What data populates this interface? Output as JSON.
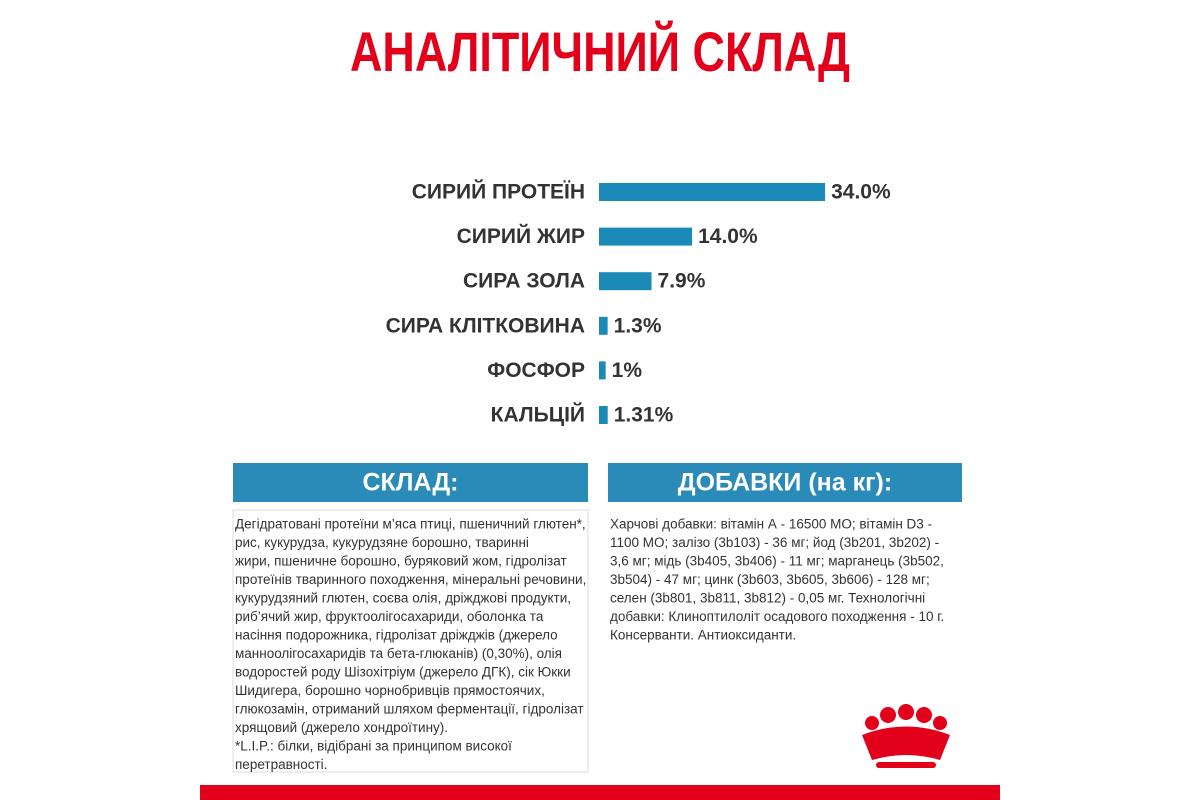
{
  "chart_data": {
    "type": "bar",
    "orientation": "horizontal",
    "title": "АНАЛІТИЧНИЙ СКЛАД",
    "categories": [
      "СИРИЙ ПРОТЕЇН",
      "СИРИЙ ЖИР",
      "СИРА ЗОЛА",
      "СИРА КЛІТКОВИНА",
      "ФОСФОР",
      "КАЛЬЦІЙ"
    ],
    "values": [
      34.0,
      14.0,
      7.9,
      1.3,
      1,
      1.31
    ],
    "value_labels": [
      "34.0%",
      "14.0%",
      "7.9%",
      "1.3%",
      "1%",
      "1.31%"
    ],
    "color": "#1b8ab6"
  },
  "sections": [
    {
      "heading": "СКЛАД:",
      "lines": [
        "Дегідратовані протеїни м’яса птиці, пшеничний глютен*,",
        "рис, кукурудза, кукурудзяне борошно, тваринні",
        "жири, пшеничне борошно, буряковий жом, гідролізат",
        "протеїнів тваринного походження, мінеральні речовини,",
        "кукурудзяний глютен, соєва олія, дріжджові продукти,",
        "риб’ячий жир, фруктоолігосахариди, оболонка та",
        "насіння подорожника, гідролізат дріжджів (джерело",
        "манноолігосахаридів та бета-глюканів) (0,30%), олія",
        "водоростей роду Шізохітріум (джерело ДГК), сік Юкки",
        "Шидигера, борошно чорнобривців прямостоячих,",
        "глюкозамін, отриманий шляхом ферментації, гідролізат",
        "хрящовий (джерело хондроїтину).",
        "*L.I.P.: білки, відібрані за принципом високої",
        "перетравності."
      ]
    },
    {
      "heading": "ДОБАВКИ (на кг):",
      "lines": [
        "Харчові добавки: вітамін А - 16500 МО; вітамін D3 -",
        "1100 МО; залізо (3b103) - 36 мг; йод (3b201, 3b202) -",
        "3,6 мг; мідь (3b405, 3b406) - 11 мг; марганець (3b502,",
        "3b504) - 47 мг; цинк (3b603, 3b605, 3b606) - 128 мг;",
        "селен (3b801, 3b811, 3b812) - 0,05 мг. Технологічні",
        "добавки: Клиноптилоліт осадового походження - 10 г.",
        "Консерванти. Антиоксиданти."
      ]
    }
  ]
}
